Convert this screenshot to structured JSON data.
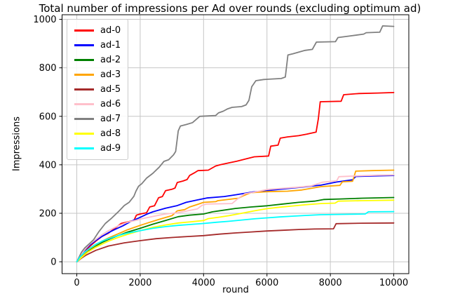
{
  "chart_data": {
    "type": "line",
    "title": "Total number of impressions per Ad over rounds (excluding optimum ad)",
    "xlabel": "round",
    "ylabel": "Impressions",
    "x_ticks": [
      0,
      2000,
      4000,
      6000,
      8000,
      10000
    ],
    "y_ticks": [
      0,
      200,
      400,
      600,
      800,
      1000
    ],
    "xlim": [
      -465,
      10475
    ],
    "ylim": [
      -49,
      1019
    ],
    "grid": true,
    "grid_color": "#c6c6c6",
    "legend_position": "upper left",
    "series": [
      {
        "name": "ad-0",
        "color": "#ff0000",
        "points": [
          [
            0,
            0
          ],
          [
            100,
            18
          ],
          [
            250,
            42
          ],
          [
            400,
            62
          ],
          [
            600,
            85
          ],
          [
            800,
            105
          ],
          [
            1000,
            118
          ],
          [
            1200,
            138
          ],
          [
            1400,
            158
          ],
          [
            1600,
            164
          ],
          [
            1800,
            170
          ],
          [
            1880,
            192
          ],
          [
            2000,
            197
          ],
          [
            2200,
            202
          ],
          [
            2300,
            226
          ],
          [
            2450,
            231
          ],
          [
            2580,
            264
          ],
          [
            2700,
            269
          ],
          [
            2800,
            293
          ],
          [
            3000,
            299
          ],
          [
            3100,
            304
          ],
          [
            3170,
            327
          ],
          [
            3350,
            333
          ],
          [
            3480,
            339
          ],
          [
            3560,
            356
          ],
          [
            3700,
            366
          ],
          [
            3820,
            376
          ],
          [
            4150,
            378
          ],
          [
            4380,
            395
          ],
          [
            4520,
            400
          ],
          [
            4800,
            408
          ],
          [
            5050,
            415
          ],
          [
            5300,
            423
          ],
          [
            5600,
            433
          ],
          [
            6050,
            436
          ],
          [
            6120,
            477
          ],
          [
            6350,
            481
          ],
          [
            6420,
            510
          ],
          [
            6650,
            515
          ],
          [
            7000,
            520
          ],
          [
            7250,
            526
          ],
          [
            7550,
            535
          ],
          [
            7620,
            590
          ],
          [
            7680,
            660
          ],
          [
            8340,
            662
          ],
          [
            8420,
            689
          ],
          [
            8900,
            694
          ],
          [
            9500,
            696
          ],
          [
            10000,
            698
          ]
        ]
      },
      {
        "name": "ad-1",
        "color": "#0000ff",
        "points": [
          [
            0,
            0
          ],
          [
            100,
            22
          ],
          [
            250,
            48
          ],
          [
            400,
            68
          ],
          [
            600,
            88
          ],
          [
            800,
            105
          ],
          [
            1000,
            120
          ],
          [
            1200,
            133
          ],
          [
            1450,
            148
          ],
          [
            1700,
            166
          ],
          [
            2000,
            183
          ],
          [
            2200,
            196
          ],
          [
            2400,
            206
          ],
          [
            2800,
            221
          ],
          [
            3150,
            231
          ],
          [
            3450,
            245
          ],
          [
            3800,
            255
          ],
          [
            4100,
            263
          ],
          [
            4650,
            269
          ],
          [
            5050,
            277
          ],
          [
            5550,
            288
          ],
          [
            6000,
            293
          ],
          [
            6500,
            300
          ],
          [
            7100,
            308
          ],
          [
            7700,
            316
          ],
          [
            8200,
            329
          ],
          [
            8700,
            338
          ],
          [
            8800,
            352
          ],
          [
            9300,
            354
          ],
          [
            10000,
            356
          ]
        ]
      },
      {
        "name": "ad-2",
        "color": "#008000",
        "points": [
          [
            0,
            0
          ],
          [
            150,
            22
          ],
          [
            350,
            45
          ],
          [
            600,
            66
          ],
          [
            800,
            80
          ],
          [
            1000,
            92
          ],
          [
            1300,
            108
          ],
          [
            1600,
            122
          ],
          [
            2000,
            138
          ],
          [
            2400,
            155
          ],
          [
            2800,
            170
          ],
          [
            3200,
            186
          ],
          [
            3550,
            192
          ],
          [
            4000,
            197
          ],
          [
            4280,
            206
          ],
          [
            4600,
            212
          ],
          [
            5000,
            220
          ],
          [
            5500,
            226
          ],
          [
            6000,
            231
          ],
          [
            6500,
            238
          ],
          [
            7000,
            245
          ],
          [
            7500,
            250
          ],
          [
            7800,
            257
          ],
          [
            8300,
            259
          ],
          [
            9000,
            262
          ],
          [
            10000,
            265
          ]
        ]
      },
      {
        "name": "ad-3",
        "color": "#ffa500",
        "points": [
          [
            0,
            0
          ],
          [
            150,
            25
          ],
          [
            350,
            48
          ],
          [
            600,
            70
          ],
          [
            800,
            85
          ],
          [
            1000,
            98
          ],
          [
            1300,
            115
          ],
          [
            1600,
            132
          ],
          [
            2000,
            150
          ],
          [
            2300,
            163
          ],
          [
            2600,
            175
          ],
          [
            3000,
            190
          ],
          [
            3170,
            210
          ],
          [
            3400,
            215
          ],
          [
            3560,
            226
          ],
          [
            3800,
            236
          ],
          [
            4000,
            245
          ],
          [
            4380,
            248
          ],
          [
            4450,
            252
          ],
          [
            5100,
            262
          ],
          [
            5250,
            272
          ],
          [
            5500,
            285
          ],
          [
            6000,
            289
          ],
          [
            6650,
            291
          ],
          [
            7100,
            296
          ],
          [
            7700,
            310
          ],
          [
            8300,
            315
          ],
          [
            8380,
            330
          ],
          [
            8700,
            332
          ],
          [
            8800,
            374
          ],
          [
            9300,
            376
          ],
          [
            10000,
            378
          ]
        ]
      },
      {
        "name": "ad-5",
        "color": "#a52a2a",
        "points": [
          [
            0,
            0
          ],
          [
            150,
            15
          ],
          [
            300,
            28
          ],
          [
            600,
            47
          ],
          [
            1000,
            65
          ],
          [
            1500,
            78
          ],
          [
            2000,
            87
          ],
          [
            2500,
            95
          ],
          [
            3000,
            100
          ],
          [
            3500,
            104
          ],
          [
            4000,
            108
          ],
          [
            4500,
            114
          ],
          [
            5000,
            119
          ],
          [
            5500,
            123
          ],
          [
            6000,
            127
          ],
          [
            6500,
            130
          ],
          [
            7000,
            133
          ],
          [
            7500,
            135
          ],
          [
            8100,
            136
          ],
          [
            8180,
            157
          ],
          [
            9000,
            159
          ],
          [
            10000,
            160
          ]
        ]
      },
      {
        "name": "ad-6",
        "color": "#ffc0cb",
        "points": [
          [
            0,
            0
          ],
          [
            100,
            25
          ],
          [
            250,
            50
          ],
          [
            400,
            72
          ],
          [
            600,
            92
          ],
          [
            800,
            112
          ],
          [
            1000,
            128
          ],
          [
            1300,
            148
          ],
          [
            1600,
            163
          ],
          [
            1900,
            172
          ],
          [
            2000,
            176
          ],
          [
            2400,
            187
          ],
          [
            2800,
            197
          ],
          [
            3150,
            202
          ],
          [
            3500,
            210
          ],
          [
            3800,
            218
          ],
          [
            3950,
            233
          ],
          [
            4100,
            238
          ],
          [
            4900,
            240
          ],
          [
            5100,
            262
          ],
          [
            5300,
            280
          ],
          [
            5600,
            287
          ],
          [
            6000,
            298
          ],
          [
            6500,
            303
          ],
          [
            7000,
            308
          ],
          [
            7400,
            313
          ],
          [
            7750,
            328
          ],
          [
            8200,
            334
          ],
          [
            8270,
            351
          ],
          [
            8800,
            354
          ],
          [
            9500,
            357
          ],
          [
            10000,
            358
          ]
        ]
      },
      {
        "name": "ad-7",
        "color": "#808080",
        "points": [
          [
            0,
            0
          ],
          [
            150,
            40
          ],
          [
            250,
            57
          ],
          [
            400,
            75
          ],
          [
            530,
            91
          ],
          [
            700,
            125
          ],
          [
            900,
            158
          ],
          [
            1100,
            180
          ],
          [
            1300,
            205
          ],
          [
            1500,
            232
          ],
          [
            1650,
            245
          ],
          [
            1800,
            270
          ],
          [
            1870,
            292
          ],
          [
            1950,
            312
          ],
          [
            2050,
            322
          ],
          [
            2200,
            345
          ],
          [
            2400,
            365
          ],
          [
            2600,
            390
          ],
          [
            2750,
            414
          ],
          [
            2900,
            421
          ],
          [
            3050,
            441
          ],
          [
            3120,
            455
          ],
          [
            3200,
            540
          ],
          [
            3270,
            560
          ],
          [
            3450,
            566
          ],
          [
            3650,
            574
          ],
          [
            3880,
            600
          ],
          [
            4380,
            603
          ],
          [
            4470,
            614
          ],
          [
            4620,
            621
          ],
          [
            4760,
            631
          ],
          [
            4900,
            637
          ],
          [
            5200,
            640
          ],
          [
            5340,
            647
          ],
          [
            5430,
            666
          ],
          [
            5520,
            722
          ],
          [
            5650,
            747
          ],
          [
            5900,
            752
          ],
          [
            6450,
            756
          ],
          [
            6580,
            762
          ],
          [
            6660,
            853
          ],
          [
            6820,
            858
          ],
          [
            7200,
            872
          ],
          [
            7430,
            876
          ],
          [
            7560,
            906
          ],
          [
            8160,
            908
          ],
          [
            8240,
            925
          ],
          [
            8600,
            931
          ],
          [
            9050,
            939
          ],
          [
            9130,
            945
          ],
          [
            9560,
            947
          ],
          [
            9650,
            973
          ],
          [
            10000,
            971
          ]
        ]
      },
      {
        "name": "ad-8",
        "color": "#ffff00",
        "points": [
          [
            0,
            0
          ],
          [
            150,
            18
          ],
          [
            350,
            40
          ],
          [
            600,
            60
          ],
          [
            800,
            73
          ],
          [
            1000,
            85
          ],
          [
            1300,
            100
          ],
          [
            1600,
            113
          ],
          [
            2000,
            128
          ],
          [
            2400,
            142
          ],
          [
            2800,
            152
          ],
          [
            3200,
            160
          ],
          [
            3600,
            165
          ],
          [
            4000,
            170
          ],
          [
            4150,
            178
          ],
          [
            4500,
            184
          ],
          [
            4800,
            190
          ],
          [
            5200,
            200
          ],
          [
            5600,
            210
          ],
          [
            6000,
            219
          ],
          [
            6400,
            225
          ],
          [
            6800,
            230
          ],
          [
            7200,
            235
          ],
          [
            7700,
            240
          ],
          [
            8150,
            242
          ],
          [
            8250,
            250
          ],
          [
            9000,
            252
          ],
          [
            10000,
            254
          ]
        ]
      },
      {
        "name": "ad-9",
        "color": "#00ffff",
        "points": [
          [
            0,
            0
          ],
          [
            100,
            20
          ],
          [
            250,
            40
          ],
          [
            400,
            55
          ],
          [
            600,
            72
          ],
          [
            800,
            85
          ],
          [
            1000,
            95
          ],
          [
            1300,
            108
          ],
          [
            1600,
            118
          ],
          [
            2000,
            128
          ],
          [
            2400,
            138
          ],
          [
            2800,
            145
          ],
          [
            3200,
            150
          ],
          [
            3600,
            154
          ],
          [
            4000,
            158
          ],
          [
            4400,
            163
          ],
          [
            4800,
            167
          ],
          [
            5200,
            172
          ],
          [
            5600,
            177
          ],
          [
            6000,
            181
          ],
          [
            6400,
            185
          ],
          [
            6800,
            188
          ],
          [
            7200,
            191
          ],
          [
            7700,
            194
          ],
          [
            8600,
            196
          ],
          [
            9100,
            197
          ],
          [
            9200,
            206
          ],
          [
            10000,
            207
          ]
        ]
      }
    ]
  }
}
